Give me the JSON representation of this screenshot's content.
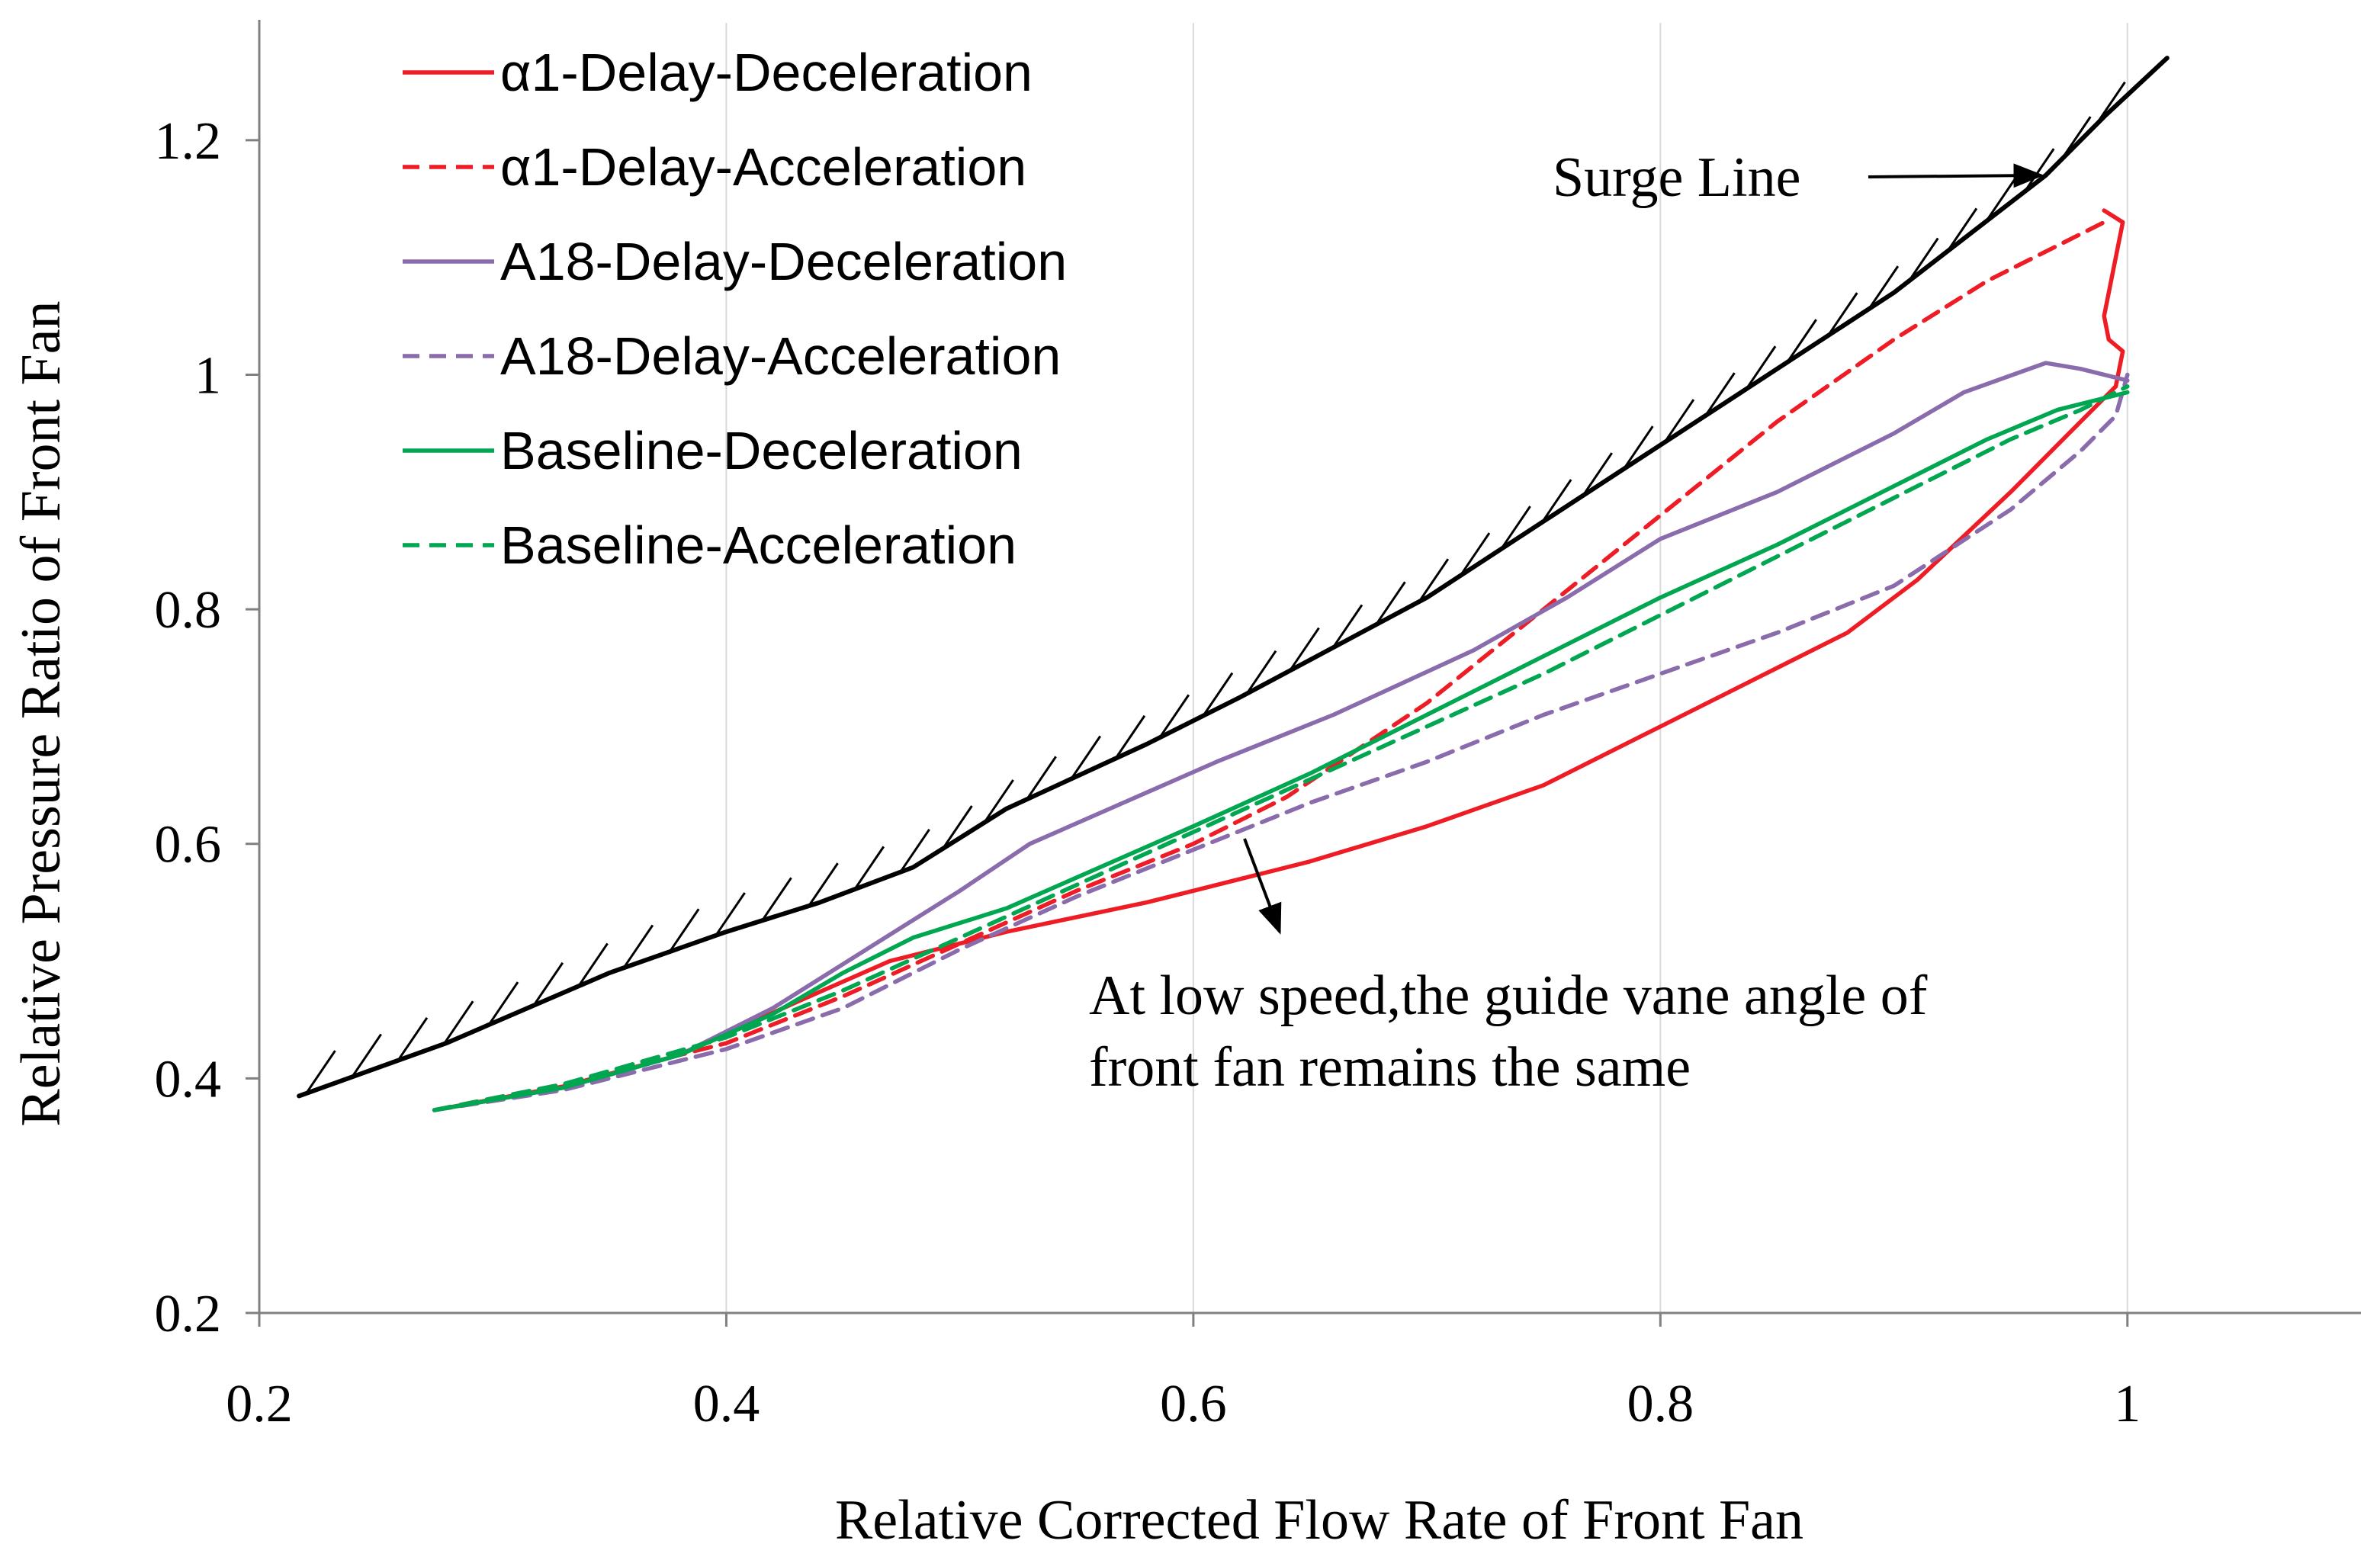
{
  "chart_data": {
    "type": "line",
    "xlabel": "Relative Corrected Flow Rate of Front Fan",
    "ylabel": "Relative Pressure Ratio of Front Fan",
    "xlim": [
      0.2,
      1.1
    ],
    "ylim": [
      0.2,
      1.3
    ],
    "x_ticks": [
      0.2,
      0.4,
      0.6,
      0.8,
      1.0
    ],
    "x_tick_labels": [
      "0.2",
      "0.4",
      "0.6",
      "0.8",
      "1"
    ],
    "y_ticks": [
      0.2,
      0.4,
      0.6,
      0.8,
      1.0,
      1.2
    ],
    "y_tick_labels": [
      "0.2",
      "0.4",
      "0.6",
      "0.8",
      "1",
      "1.2"
    ],
    "grid": "vertical",
    "legend_position": "top-left",
    "series": [
      {
        "name": "α1-Delay-Deceleration",
        "color": "#ee1c25",
        "dash": "solid",
        "points": [
          [
            0.275,
            0.373
          ],
          [
            0.33,
            0.393
          ],
          [
            0.38,
            0.42
          ],
          [
            0.43,
            0.465
          ],
          [
            0.47,
            0.5
          ],
          [
            0.52,
            0.525
          ],
          [
            0.58,
            0.55
          ],
          [
            0.6,
            0.56
          ],
          [
            0.65,
            0.585
          ],
          [
            0.7,
            0.615
          ],
          [
            0.75,
            0.65
          ],
          [
            0.8,
            0.7
          ],
          [
            0.85,
            0.75
          ],
          [
            0.88,
            0.78
          ],
          [
            0.91,
            0.825
          ],
          [
            0.95,
            0.9
          ],
          [
            0.97,
            0.94
          ],
          [
            0.985,
            0.97
          ],
          [
            0.995,
            0.99
          ],
          [
            0.998,
            1.02
          ],
          [
            0.992,
            1.03
          ],
          [
            0.99,
            1.05
          ],
          [
            0.995,
            1.1
          ],
          [
            0.998,
            1.13
          ],
          [
            0.99,
            1.14
          ]
        ]
      },
      {
        "name": "α1-Delay-Acceleration",
        "color": "#ee1c25",
        "dash": "dashed",
        "points": [
          [
            0.275,
            0.373
          ],
          [
            0.33,
            0.395
          ],
          [
            0.4,
            0.43
          ],
          [
            0.45,
            0.47
          ],
          [
            0.5,
            0.515
          ],
          [
            0.55,
            0.56
          ],
          [
            0.6,
            0.6
          ],
          [
            0.64,
            0.64
          ],
          [
            0.7,
            0.72
          ],
          [
            0.75,
            0.8
          ],
          [
            0.8,
            0.88
          ],
          [
            0.85,
            0.96
          ],
          [
            0.9,
            1.03
          ],
          [
            0.94,
            1.08
          ],
          [
            0.97,
            1.11
          ],
          [
            0.99,
            1.13
          ]
        ]
      },
      {
        "name": "A18-Delay-Deceleration",
        "color": "#8a6bab",
        "dash": "solid",
        "points": [
          [
            0.275,
            0.373
          ],
          [
            0.33,
            0.392
          ],
          [
            0.38,
            0.42
          ],
          [
            0.42,
            0.46
          ],
          [
            0.46,
            0.51
          ],
          [
            0.5,
            0.56
          ],
          [
            0.53,
            0.6
          ],
          [
            0.57,
            0.635
          ],
          [
            0.61,
            0.67
          ],
          [
            0.66,
            0.71
          ],
          [
            0.72,
            0.765
          ],
          [
            0.76,
            0.81
          ],
          [
            0.8,
            0.86
          ],
          [
            0.85,
            0.9
          ],
          [
            0.9,
            0.95
          ],
          [
            0.93,
            0.985
          ],
          [
            0.965,
            1.01
          ],
          [
            0.98,
            1.005
          ],
          [
            1.0,
            0.995
          ]
        ]
      },
      {
        "name": "A18-Delay-Acceleration",
        "color": "#8a6bab",
        "dash": "dashed",
        "points": [
          [
            0.275,
            0.373
          ],
          [
            0.33,
            0.39
          ],
          [
            0.4,
            0.425
          ],
          [
            0.45,
            0.46
          ],
          [
            0.5,
            0.51
          ],
          [
            0.55,
            0.555
          ],
          [
            0.6,
            0.595
          ],
          [
            0.65,
            0.635
          ],
          [
            0.7,
            0.67
          ],
          [
            0.75,
            0.71
          ],
          [
            0.8,
            0.745
          ],
          [
            0.85,
            0.78
          ],
          [
            0.9,
            0.82
          ],
          [
            0.95,
            0.885
          ],
          [
            0.98,
            0.935
          ],
          [
            0.995,
            0.965
          ],
          [
            1.0,
            1.0
          ]
        ]
      },
      {
        "name": "Baseline-Deceleration",
        "color": "#00a650",
        "dash": "solid",
        "points": [
          [
            0.275,
            0.373
          ],
          [
            0.33,
            0.392
          ],
          [
            0.38,
            0.42
          ],
          [
            0.42,
            0.455
          ],
          [
            0.45,
            0.49
          ],
          [
            0.48,
            0.52
          ],
          [
            0.52,
            0.545
          ],
          [
            0.56,
            0.58
          ],
          [
            0.6,
            0.615
          ],
          [
            0.65,
            0.66
          ],
          [
            0.7,
            0.71
          ],
          [
            0.75,
            0.76
          ],
          [
            0.8,
            0.81
          ],
          [
            0.85,
            0.855
          ],
          [
            0.9,
            0.905
          ],
          [
            0.94,
            0.945
          ],
          [
            0.97,
            0.97
          ],
          [
            1.0,
            0.985
          ]
        ]
      },
      {
        "name": "Baseline-Acceleration",
        "color": "#00a650",
        "dash": "dashed",
        "points": [
          [
            0.275,
            0.373
          ],
          [
            0.33,
            0.395
          ],
          [
            0.4,
            0.435
          ],
          [
            0.45,
            0.475
          ],
          [
            0.5,
            0.52
          ],
          [
            0.55,
            0.565
          ],
          [
            0.6,
            0.61
          ],
          [
            0.65,
            0.655
          ],
          [
            0.7,
            0.7
          ],
          [
            0.75,
            0.745
          ],
          [
            0.8,
            0.795
          ],
          [
            0.85,
            0.845
          ],
          [
            0.9,
            0.895
          ],
          [
            0.95,
            0.945
          ],
          [
            0.98,
            0.97
          ],
          [
            1.0,
            0.99
          ]
        ]
      },
      {
        "name": "Surge Line",
        "color": "#000000",
        "dash": "solid",
        "in_legend": false,
        "points": [
          [
            0.217,
            0.385
          ],
          [
            0.28,
            0.43
          ],
          [
            0.35,
            0.49
          ],
          [
            0.4,
            0.525
          ],
          [
            0.44,
            0.55
          ],
          [
            0.48,
            0.58
          ],
          [
            0.52,
            0.63
          ],
          [
            0.58,
            0.685
          ],
          [
            0.62,
            0.725
          ],
          [
            0.7,
            0.81
          ],
          [
            0.8,
            0.94
          ],
          [
            0.9,
            1.07
          ],
          [
            0.965,
            1.17
          ],
          [
            0.99,
            1.22
          ],
          [
            1.017,
            1.27
          ]
        ]
      }
    ],
    "annotations": [
      {
        "text": "Surge Line",
        "x": 0.8,
        "y": 1.17,
        "arrow_to": [
          0.963,
          1.17
        ]
      },
      {
        "lines": [
          "At low speed,the guide vane angle of",
          "front fan remains the same"
        ],
        "x": 0.555,
        "y": 0.47,
        "arrow_from": [
          0.625,
          0.545
        ],
        "arrow_to": [
          0.642,
          0.465
        ]
      }
    ]
  }
}
